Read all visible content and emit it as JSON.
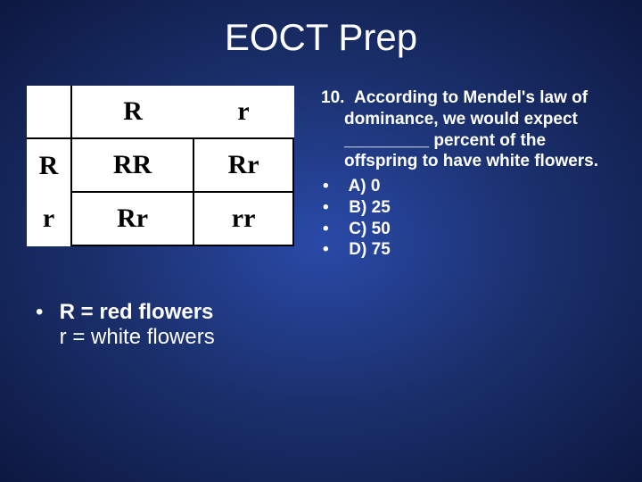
{
  "title": "EOCT Prep",
  "punnett": {
    "col_headers": [
      "R",
      "r"
    ],
    "row_headers": [
      "R",
      "r"
    ],
    "cells": [
      [
        "RR",
        "Rr"
      ],
      [
        "Rr",
        "rr"
      ]
    ],
    "background_color": "#ffffff",
    "text_color": "#000000"
  },
  "legend": {
    "line1": "R = red flowers",
    "line2": "r = white flowers"
  },
  "question": {
    "number": "10.",
    "text": "According to Mendel's law of dominance, we would expect _________ percent of the offspring to have white flowers.",
    "options": [
      {
        "letter": "A)",
        "text": "0"
      },
      {
        "letter": "B)",
        "text": "25"
      },
      {
        "letter": "C)",
        "text": "50"
      },
      {
        "letter": "D)",
        "text": "75"
      }
    ]
  },
  "colors": {
    "background_center": "#2a4aa8",
    "background_edge": "#0d1840",
    "text": "#ffffff"
  }
}
